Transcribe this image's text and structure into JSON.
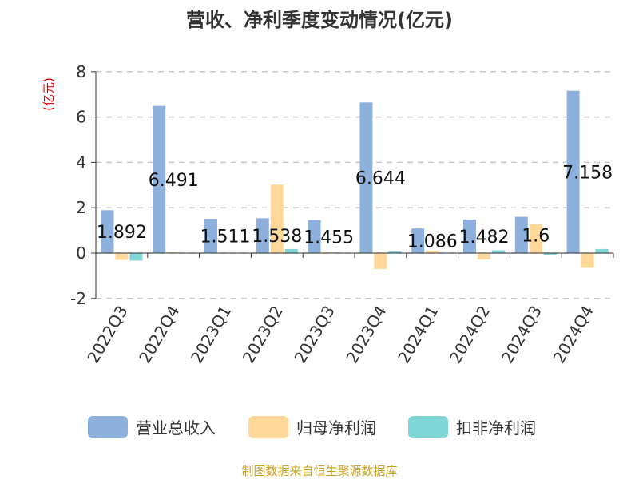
{
  "chart_data": {
    "type": "bar",
    "title": "营收、净利季度变动情况(亿元)",
    "ylabel": "(亿元)",
    "xlabel": "",
    "ylim": [
      -2,
      8
    ],
    "yticks": [
      -2,
      0,
      2,
      4,
      6,
      8
    ],
    "grid": true,
    "legend_position": "bottom",
    "categories": [
      "2022Q3",
      "2022Q4",
      "2023Q1",
      "2023Q2",
      "2023Q3",
      "2023Q4",
      "2024Q1",
      "2024Q2",
      "2024Q3",
      "2024Q4"
    ],
    "series": [
      {
        "name": "营业总收入",
        "color": "#8eb0dc",
        "values": [
          1.892,
          6.491,
          1.511,
          1.538,
          1.455,
          6.644,
          1.086,
          1.482,
          1.6,
          7.158
        ]
      },
      {
        "name": "归母净利润",
        "color": "#fdd898",
        "values": [
          -0.3,
          0.03,
          0.02,
          3.02,
          0.03,
          -0.7,
          0.1,
          -0.28,
          1.28,
          -0.65
        ]
      },
      {
        "name": "扣非净利润",
        "color": "#7fd6d6",
        "values": [
          -0.33,
          0.01,
          0.01,
          0.18,
          0.01,
          0.08,
          0.02,
          0.12,
          -0.1,
          0.18
        ]
      }
    ],
    "data_labels": [
      "1.892",
      "6.491",
      "1.511",
      "1.538",
      "1.455",
      "6.644",
      "1.086",
      "1.482",
      "1.6",
      "7.158"
    ]
  },
  "source": "制图数据来自恒生聚源数据库"
}
